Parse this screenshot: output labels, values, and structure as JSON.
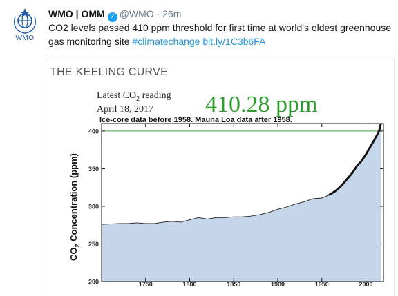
{
  "tweet": {
    "author_name": "WMO | OMM",
    "handle": "@WMO",
    "separator": "·",
    "time": "26m",
    "avatar_label": "WMO",
    "text_plain": "CO2 levels passed 410 ppm threshold for first time at world's oldest greenhouse gas monitoring site ",
    "hashtag": "#climatechange",
    "link": "bit.ly/1C3b6FA"
  },
  "card": {
    "heading": "THE KEELING CURVE",
    "reading_label_pre": "Latest CO",
    "reading_label_sub": "2",
    "reading_label_post": " reading",
    "reading_date": "April 18, 2017",
    "reading_value": "410.28 ppm",
    "subtitle": "Ice-core data before 1958. Mauna Loa data after 1958."
  },
  "chart_data": {
    "type": "area",
    "ylabel_pre": "CO",
    "ylabel_sub": "2",
    "ylabel_post": " Concentration (ppm)",
    "xlabel": "",
    "xlim": [
      1700,
      2020
    ],
    "ylim": [
      200,
      410
    ],
    "x_ticks": [
      1750,
      1800,
      1850,
      1900,
      1950,
      2000
    ],
    "y_ticks": [
      200,
      250,
      300,
      350,
      400
    ],
    "reference_line": 400,
    "colors": {
      "fill": "#c5d5ea",
      "line": "#222222",
      "reference": "#3aaa35"
    },
    "x": [
      1700,
      1710,
      1720,
      1730,
      1740,
      1750,
      1760,
      1770,
      1780,
      1790,
      1800,
      1810,
      1820,
      1830,
      1840,
      1850,
      1860,
      1870,
      1880,
      1890,
      1900,
      1910,
      1920,
      1930,
      1940,
      1950,
      1958,
      1965,
      1970,
      1975,
      1980,
      1985,
      1990,
      1995,
      2000,
      2005,
      2010,
      2015,
      2017
    ],
    "y": [
      276,
      276.5,
      277,
      277,
      278,
      277,
      277,
      279,
      280,
      279,
      282,
      285,
      283,
      285,
      285,
      286,
      286,
      287,
      289,
      292,
      296,
      299,
      303,
      306,
      310,
      311,
      315,
      320,
      325,
      331,
      338,
      345,
      354,
      360,
      369,
      379,
      389,
      400,
      410
    ]
  }
}
